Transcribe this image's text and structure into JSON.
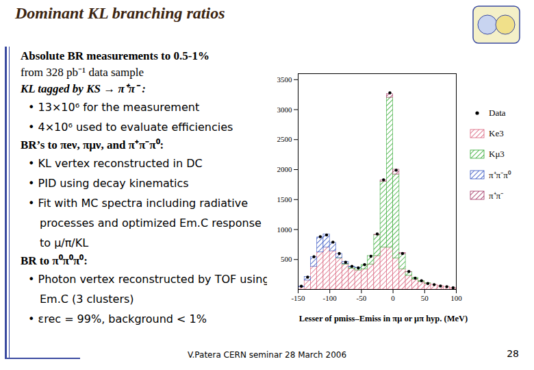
{
  "slide": {
    "title": "Dominant KL branching ratios",
    "body": [
      {
        "text": "Absolute BR measurements to 0.5-1%",
        "style": "bold"
      },
      {
        "text": "from 328 pb⁻¹ data sample",
        "style": "plain"
      },
      {
        "text": "KL tagged by KS → π⁺π⁻ :",
        "style": "bolditalic"
      },
      {
        "text": "• 13×10⁶ for the measurement",
        "style": "bullet"
      },
      {
        "text": "• 4×10⁶ used to evaluate efficiencies",
        "style": "bullet"
      },
      {
        "text": "BR’s to πeν, πμν, and π⁺π⁻π⁰:",
        "style": "bold"
      },
      {
        "text": "• KL vertex reconstructed in DC",
        "style": "bullet"
      },
      {
        "text": "• PID using decay kinematics",
        "style": "bullet"
      },
      {
        "text": "• Fit with MC spectra including radiative processes and optimized Em.C response to μ/π/KL",
        "style": "bullet"
      },
      {
        "text": "BR to π⁰π⁰π⁰:",
        "style": "bold"
      },
      {
        "text": "• Photon vertex reconstructed by TOF using Em.C (3 clusters)",
        "style": "bullet"
      },
      {
        "text": "• εrec = 99%, background < 1%",
        "style": "bullet"
      }
    ],
    "footer": "V.Patera CERN seminar 28 March 2006",
    "page": "28"
  },
  "chart_data": {
    "type": "histogram",
    "xlabel": "Lesser of pmiss–Emiss in πμ or μπ hyp. (MeV)",
    "bins": [
      -150,
      -140,
      -130,
      -120,
      -110,
      -100,
      -90,
      -80,
      -70,
      -60,
      -50,
      -40,
      -30,
      -20,
      -10,
      0,
      10,
      20,
      30,
      40,
      50,
      60,
      70,
      80,
      90,
      100
    ],
    "series": [
      {
        "name": "Data",
        "type": "scatter",
        "marker": "dot",
        "color": "#000000",
        "values": [
          55,
          205,
          545,
          880,
          910,
          790,
          600,
          455,
          385,
          360,
          415,
          555,
          925,
          1830,
          3280,
          1990,
          600,
          300,
          190,
          145,
          100,
          82,
          58,
          47,
          28
        ]
      },
      {
        "name": "Ke3",
        "type": "bar",
        "color": "#d9607a",
        "values": [
          40,
          150,
          380,
          620,
          700,
          640,
          520,
          420,
          350,
          320,
          340,
          420,
          560,
          700,
          700,
          520,
          340,
          230,
          170,
          130,
          100,
          80,
          60,
          45,
          30
        ]
      },
      {
        "name": "Kμ3",
        "type": "bar",
        "color": "#30a830",
        "values": [
          0,
          0,
          0,
          0,
          0,
          0,
          5,
          10,
          20,
          40,
          70,
          140,
          350,
          1100,
          2500,
          1400,
          250,
          60,
          25,
          10,
          5,
          0,
          0,
          0,
          0
        ]
      },
      {
        "name": "π⁺π⁻π⁰",
        "type": "bar",
        "color": "#3050c0",
        "values": [
          10,
          60,
          160,
          250,
          220,
          140,
          70,
          30,
          10,
          5,
          0,
          0,
          0,
          0,
          0,
          0,
          0,
          0,
          0,
          0,
          0,
          0,
          0,
          0,
          0
        ]
      },
      {
        "name": "π⁺π⁻",
        "type": "bar",
        "color": "#a03060",
        "values": [
          0,
          0,
          0,
          0,
          0,
          0,
          0,
          0,
          0,
          0,
          0,
          0,
          5,
          20,
          60,
          80,
          20,
          5,
          0,
          0,
          0,
          0,
          0,
          0,
          0
        ]
      }
    ],
    "stacked": true,
    "xlim": [
      -150,
      100
    ],
    "xticks": [
      -150,
      -100,
      -50,
      0,
      50,
      100
    ],
    "ylim": [
      0,
      3600
    ],
    "yticks": [
      500,
      1000,
      1500,
      2000,
      2500,
      3000,
      3500
    ],
    "grid": false,
    "legend": "right"
  }
}
